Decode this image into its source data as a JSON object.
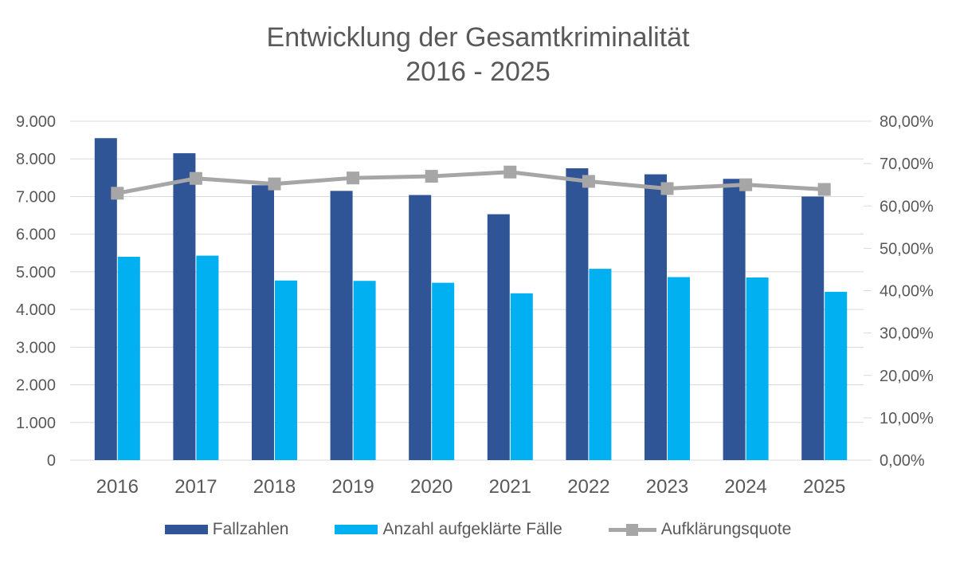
{
  "title": {
    "line1": "Entwicklung der Gesamtkriminalität",
    "line2": "2016 - 2025"
  },
  "colors": {
    "fallzahlen_bar": "#2F5597",
    "aufgeklaerte_bar": "#00B0F0",
    "quote_line": "#A6A6A6",
    "gridline": "#D9D9D9",
    "text": "#595959"
  },
  "chart_data": {
    "type": "bar",
    "combo": "grouped bars with secondary-axis line",
    "title": "Entwicklung der Gesamtkriminalität",
    "subtitle": "2016 - 2025",
    "categories": [
      "2016",
      "2017",
      "2018",
      "2019",
      "2020",
      "2021",
      "2022",
      "2023",
      "2024",
      "2025"
    ],
    "series": [
      {
        "name": "Fallzahlen",
        "kind": "bar",
        "axis": "left",
        "color": "#2F5597",
        "values": [
          8550,
          8150,
          7300,
          7150,
          7040,
          6530,
          7750,
          7590,
          7470,
          7000
        ]
      },
      {
        "name": "Anzahl aufgeklärte Fälle",
        "kind": "bar",
        "axis": "left",
        "color": "#00B0F0",
        "values": [
          5400,
          5430,
          4770,
          4760,
          4710,
          4430,
          5080,
          4860,
          4850,
          4470
        ]
      },
      {
        "name": "Aufklärungsquote",
        "kind": "line",
        "axis": "right",
        "color": "#A6A6A6",
        "values": [
          63.0,
          66.5,
          65.2,
          66.6,
          67.0,
          68.0,
          65.8,
          64.1,
          65.0,
          63.9
        ]
      }
    ],
    "left_axis": {
      "min": 0,
      "max": 9000,
      "step": 1000,
      "tick_labels": [
        "9.000",
        "8.000",
        "7.000",
        "6.000",
        "5.000",
        "4.000",
        "3.000",
        "2.000",
        "1.000",
        "0"
      ]
    },
    "right_axis": {
      "min": 0,
      "max": 80,
      "step": 10,
      "tick_labels": [
        "80,00%",
        "70,00%",
        "60,00%",
        "50,00%",
        "40,00%",
        "30,00%",
        "20,00%",
        "10,00%",
        "0,00%"
      ]
    },
    "grid": true,
    "legend_position": "bottom"
  }
}
